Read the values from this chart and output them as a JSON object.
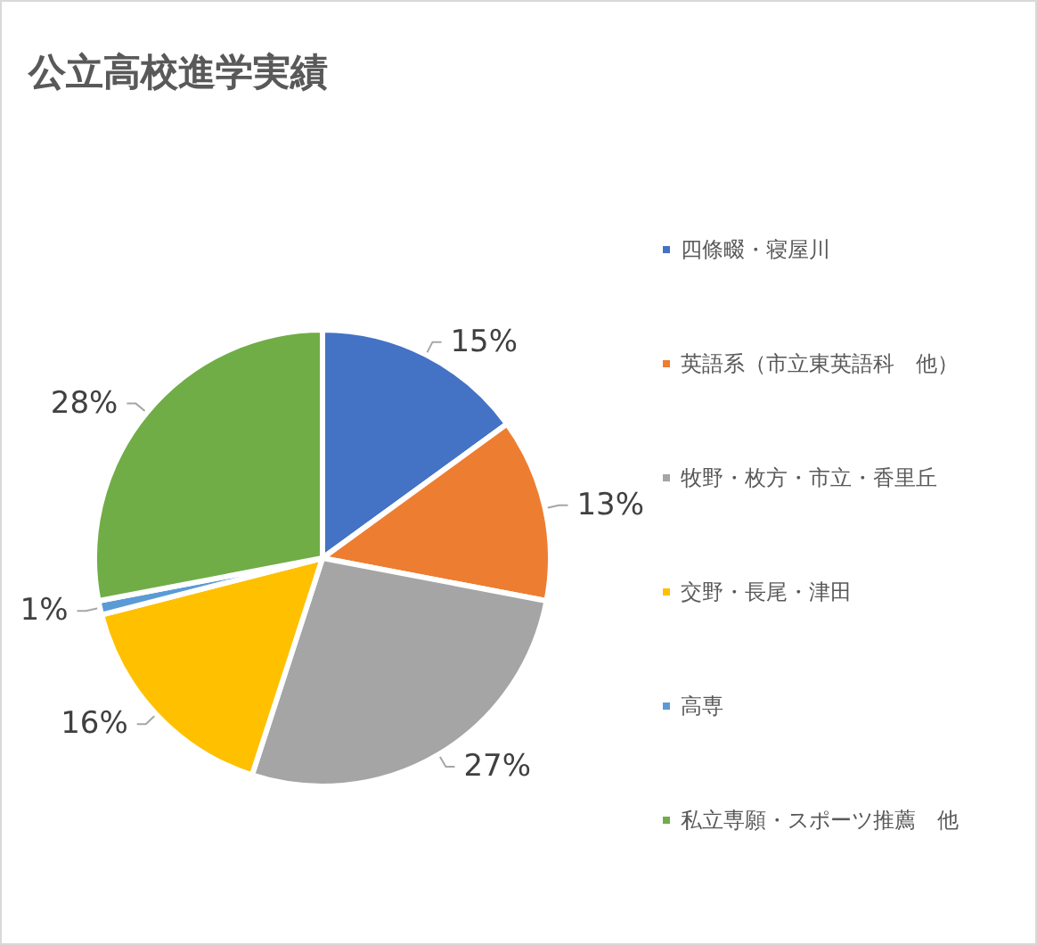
{
  "chart_data": {
    "type": "pie",
    "title": "公立高校進学実績",
    "categories": [
      "四條畷・寝屋川",
      "英語系（市立東英語科　他）",
      "牧野・枚方・市立・香里丘",
      "交野・長尾・津田",
      "高専",
      "私立専願・スポーツ推薦　他"
    ],
    "values": [
      15,
      13,
      27,
      16,
      1,
      28
    ],
    "colors": [
      "#4472c4",
      "#ed7d31",
      "#a5a5a5",
      "#ffc000",
      "#5b9bd5",
      "#70ad47"
    ],
    "value_labels": [
      "15%",
      "13%",
      "27%",
      "16%",
      "1%",
      "28%"
    ],
    "legend": "right"
  }
}
